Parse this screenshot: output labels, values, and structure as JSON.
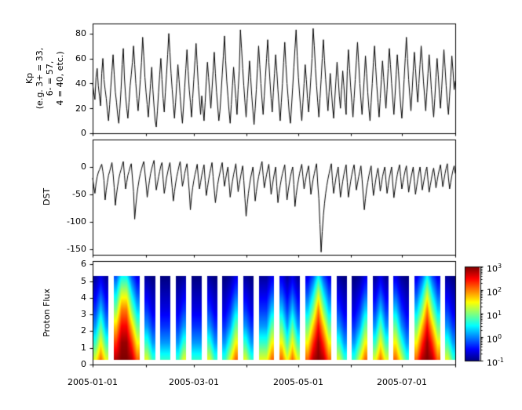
{
  "figure": {
    "background": "#ffffff",
    "foreground": "#000000"
  },
  "x_axis": {
    "tick_labels": [
      "2005-01-01",
      "2005-03-01",
      "2005-05-01",
      "2005-07-01"
    ],
    "tick_days": [
      0,
      59,
      120,
      181
    ],
    "minor_tick_days": [
      31,
      90,
      151,
      212
    ],
    "range_days": [
      0,
      212
    ]
  },
  "chart_data": [
    {
      "type": "line",
      "name": "kp_index",
      "ylabel_lines": [
        "Kp",
        "(e.g. 3+ = 33,",
        "6- = 57,",
        "4 = 40, etc.)"
      ],
      "ylim": [
        0,
        88
      ],
      "ytick_labels": [
        "80",
        "60",
        "40",
        "20",
        "0"
      ],
      "ytick_values": [
        80,
        60,
        40,
        20,
        0
      ],
      "line_color": "#000000",
      "values": [
        40,
        33,
        27,
        45,
        52,
        38,
        30,
        22,
        48,
        60,
        43,
        35,
        28,
        18,
        10,
        23,
        37,
        50,
        63,
        47,
        33,
        25,
        15,
        8,
        20,
        35,
        55,
        68,
        44,
        30,
        20,
        12,
        25,
        38,
        47,
        57,
        70,
        55,
        40,
        28,
        18,
        30,
        43,
        57,
        77,
        62,
        45,
        33,
        23,
        13,
        27,
        40,
        53,
        35,
        22,
        10,
        5,
        18,
        33,
        47,
        60,
        43,
        28,
        17,
        33,
        47,
        63,
        80,
        65,
        48,
        35,
        23,
        12,
        25,
        40,
        55,
        43,
        30,
        18,
        8,
        22,
        37,
        52,
        67,
        50,
        35,
        25,
        13,
        28,
        43,
        58,
        72,
        55,
        38,
        27,
        15,
        30,
        20,
        10,
        25,
        42,
        57,
        45,
        32,
        20,
        35,
        50,
        65,
        48,
        33,
        22,
        10,
        18,
        32,
        47,
        62,
        78,
        58,
        42,
        30,
        18,
        8,
        23,
        38,
        53,
        40,
        28,
        15,
        35,
        50,
        83,
        68,
        52,
        38,
        25,
        13,
        28,
        42,
        58,
        45,
        30,
        18,
        7,
        20,
        35,
        52,
        70,
        55,
        40,
        27,
        15,
        30,
        45,
        60,
        75,
        57,
        42,
        28,
        17,
        33,
        48,
        63,
        50,
        35,
        22,
        10,
        25,
        40,
        57,
        73,
        55,
        40,
        28,
        15,
        8,
        22,
        37,
        53,
        68,
        83,
        62,
        45,
        32,
        20,
        10,
        25,
        40,
        55,
        43,
        28,
        17,
        30,
        45,
        60,
        84,
        70,
        52,
        38,
        25,
        13,
        28,
        43,
        60,
        75,
        58,
        43,
        30,
        18,
        33,
        48,
        35,
        22,
        12,
        27,
        42,
        57,
        45,
        30,
        20,
        35,
        50,
        38,
        25,
        15,
        50,
        67,
        52,
        37,
        25,
        13,
        28,
        43,
        58,
        73,
        57,
        40,
        27,
        15,
        30,
        45,
        62,
        48,
        33,
        20,
        10,
        25,
        40,
        57,
        70,
        53,
        38,
        25,
        13,
        28,
        43,
        58,
        45,
        32,
        20,
        35,
        52,
        68,
        55,
        40,
        27,
        15,
        30,
        47,
        63,
        50,
        35,
        22,
        12,
        27,
        43,
        60,
        77,
        60,
        43,
        30,
        18,
        33,
        50,
        65,
        52,
        37,
        25,
        40,
        55,
        70,
        57,
        42,
        30,
        18,
        33,
        48,
        63,
        50,
        35,
        23,
        13,
        28,
        45,
        60,
        47,
        32,
        20,
        35,
        52,
        67,
        53,
        38,
        25,
        15,
        30,
        45,
        62,
        50,
        35,
        42
      ]
    },
    {
      "type": "line",
      "name": "dst_index",
      "ylabel": "DST",
      "ylim": [
        -160,
        50
      ],
      "ytick_labels": [
        "0",
        "-50",
        "-100",
        "-150"
      ],
      "ytick_values": [
        0,
        -50,
        -100,
        -150
      ],
      "line_color": "#000000",
      "values": [
        -20,
        -35,
        -48,
        -30,
        -18,
        -10,
        -5,
        0,
        5,
        -8,
        -25,
        -60,
        -42,
        -28,
        -15,
        -8,
        0,
        8,
        -12,
        -38,
        -70,
        -50,
        -35,
        -22,
        -12,
        -5,
        3,
        10,
        -15,
        -40,
        -28,
        -15,
        -8,
        0,
        6,
        -20,
        -45,
        -95,
        -70,
        -50,
        -35,
        -22,
        -12,
        -4,
        4,
        10,
        -10,
        -30,
        -55,
        -40,
        -25,
        -12,
        -3,
        5,
        12,
        -18,
        -42,
        -30,
        -18,
        -8,
        2,
        8,
        -22,
        -48,
        -35,
        -20,
        -10,
        0,
        8,
        -15,
        -38,
        -62,
        -45,
        -30,
        -18,
        -8,
        2,
        10,
        -12,
        -35,
        -25,
        -12,
        -2,
        6,
        -18,
        -44,
        -78,
        -55,
        -38,
        -25,
        -14,
        -5,
        5,
        -20,
        -40,
        -28,
        -15,
        -5,
        4,
        -25,
        -52,
        -38,
        -24,
        -12,
        -2,
        8,
        -18,
        -42,
        -65,
        -48,
        -32,
        -20,
        -10,
        0,
        8,
        -15,
        -35,
        -22,
        -10,
        0,
        -28,
        -55,
        -40,
        -26,
        -14,
        -4,
        6,
        -20,
        -45,
        -32,
        -20,
        -8,
        2,
        -25,
        -58,
        -90,
        -68,
        -48,
        -33,
        -20,
        -10,
        0,
        -30,
        -62,
        -45,
        -30,
        -18,
        -8,
        2,
        10,
        -15,
        -38,
        -26,
        -14,
        -4,
        5,
        -22,
        -50,
        -36,
        -22,
        -10,
        0,
        -35,
        -65,
        -48,
        -34,
        -22,
        -12,
        -4,
        4,
        -28,
        -60,
        -44,
        -30,
        -18,
        -8,
        0,
        -32,
        -72,
        -52,
        -36,
        -24,
        -12,
        -3,
        5,
        -18,
        -40,
        -28,
        -16,
        -6,
        2,
        -24,
        -50,
        -36,
        -22,
        -12,
        -2,
        6,
        -30,
        -58,
        -105,
        -155,
        -118,
        -88,
        -66,
        -48,
        -34,
        -22,
        -12,
        -2,
        6,
        -25,
        -48,
        -34,
        -20,
        -10,
        0,
        -28,
        -55,
        -40,
        -26,
        -14,
        -4,
        4,
        -28,
        -55,
        -40,
        -26,
        -14,
        -4,
        4,
        -18,
        -42,
        -30,
        -18,
        -8,
        2,
        -22,
        -50,
        -78,
        -58,
        -40,
        -28,
        -16,
        -6,
        2,
        -28,
        -52,
        -38,
        -24,
        -12,
        -2,
        -20,
        -44,
        -32,
        -18,
        -8,
        0,
        -24,
        -48,
        -34,
        -20,
        -10,
        0,
        -30,
        -56,
        -40,
        -26,
        -14,
        -4,
        4,
        -18,
        -40,
        -28,
        -16,
        -6,
        2,
        -22,
        -46,
        -32,
        -20,
        -10,
        0,
        -26,
        -50,
        -36,
        -22,
        -10,
        0,
        -20,
        -42,
        -30,
        -18,
        -8,
        0,
        -24,
        -46,
        -34,
        -22,
        -10,
        -2,
        -18,
        -38,
        -26,
        -14,
        -4,
        4,
        -16,
        -36,
        -24,
        -12,
        -2,
        6,
        -20,
        -40,
        -28,
        -16,
        -6,
        2,
        -12
      ]
    },
    {
      "type": "heatmap",
      "name": "proton_flux",
      "ylabel": "Proton Flux",
      "ylim": [
        0,
        6.2
      ],
      "ytick_labels": [
        "6",
        "5",
        "4",
        "3",
        "2",
        "1",
        "0"
      ],
      "ytick_values": [
        6,
        5,
        4,
        3,
        2,
        1,
        0
      ],
      "colormap": "jet",
      "scale": "log10",
      "clim": [
        -1,
        3
      ],
      "profiles": {
        "q": [
          1.4,
          0.7,
          0.1,
          -0.3,
          -0.6,
          -0.9
        ],
        "l": [
          0.7,
          0.1,
          -0.3,
          -0.6,
          -0.8,
          -1.0
        ],
        "a": [
          2.1,
          1.5,
          0.9,
          0.3,
          -0.2,
          -0.6
        ],
        "s": [
          2.8,
          2.3,
          1.7,
          1.0,
          0.4,
          -0.2
        ],
        "x": [
          3.0,
          2.9,
          2.5,
          2.0,
          1.3,
          0.5
        ]
      },
      "columns": "qaqgsxxsagqlgllglqgllgqlglqagqlgqqagaqaqgasxsagqlglqagqaqgaqlgasxsagql",
      "colorbar": {
        "tick_values": [
          3,
          2,
          1,
          0,
          -1
        ],
        "ticks": [
          {
            "base": "10",
            "exp": "3"
          },
          {
            "base": "10",
            "exp": "2"
          },
          {
            "base": "10",
            "exp": "1"
          },
          {
            "base": "10",
            "exp": "0"
          },
          {
            "base": "10",
            "exp": "-1"
          }
        ]
      }
    }
  ]
}
